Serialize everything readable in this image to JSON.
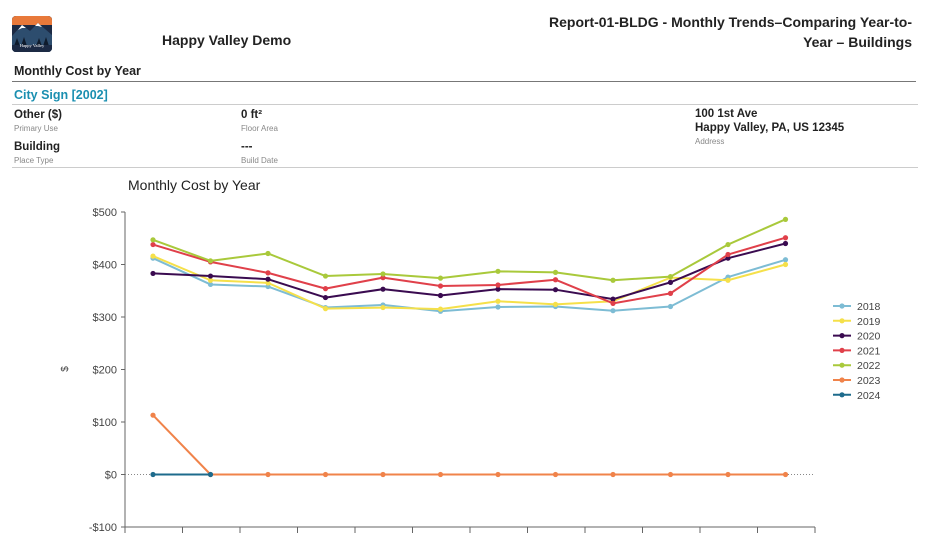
{
  "header": {
    "logo_text": "Happy Valley",
    "org_name": "Happy Valley Demo",
    "report_title": "Report-01-BLDG - Monthly Trends–Comparing Year-to-Year – Buildings"
  },
  "section": {
    "title": "Monthly Cost by Year"
  },
  "place": {
    "name": "City Sign [2002]",
    "primary_use_value": "Other  ($)",
    "primary_use_label": "Primary Use",
    "place_type_value": "Building",
    "place_type_label": "Place Type",
    "floor_area_value": "0 ft²",
    "floor_area_label": "Floor Area",
    "build_date_value": "---",
    "build_date_label": "Build Date",
    "address_line1": "100 1st Ave",
    "address_line2": "Happy Valley, PA, US 12345",
    "address_label": "Address"
  },
  "chart_data": {
    "type": "line",
    "title": "Monthly Cost by Year",
    "ylabel": "$",
    "ylim": [
      -100,
      500
    ],
    "yticks": [
      -100,
      0,
      100,
      200,
      300,
      400,
      500
    ],
    "ytick_labels": [
      "-$100",
      "$0",
      "$100",
      "$200",
      "$300",
      "$400",
      "$500"
    ],
    "zero_line": true,
    "legend_position": "right",
    "x_count": 12,
    "series": [
      {
        "name": "2018",
        "color": "#7dbcd4",
        "values": [
          412,
          362,
          358,
          318,
          323,
          311,
          319,
          320,
          312,
          320,
          376,
          409
        ]
      },
      {
        "name": "2019",
        "color": "#f5e04a",
        "values": [
          416,
          370,
          365,
          316,
          318,
          315,
          330,
          324,
          330,
          375,
          370,
          400
        ]
      },
      {
        "name": "2020",
        "color": "#3a0b50",
        "values": [
          383,
          378,
          372,
          337,
          353,
          341,
          353,
          352,
          334,
          366,
          412,
          440
        ]
      },
      {
        "name": "2021",
        "color": "#e0404a",
        "values": [
          438,
          405,
          384,
          354,
          375,
          359,
          361,
          371,
          326,
          345,
          419,
          451
        ]
      },
      {
        "name": "2022",
        "color": "#a9c93b",
        "values": [
          447,
          407,
          421,
          378,
          382,
          374,
          387,
          385,
          370,
          377,
          438,
          486
        ]
      },
      {
        "name": "2023",
        "color": "#f0834a",
        "values": [
          113,
          0,
          0,
          0,
          0,
          0,
          0,
          0,
          0,
          0,
          0,
          0
        ]
      },
      {
        "name": "2024",
        "color": "#1e6b8c",
        "values": [
          0,
          0
        ]
      }
    ]
  }
}
